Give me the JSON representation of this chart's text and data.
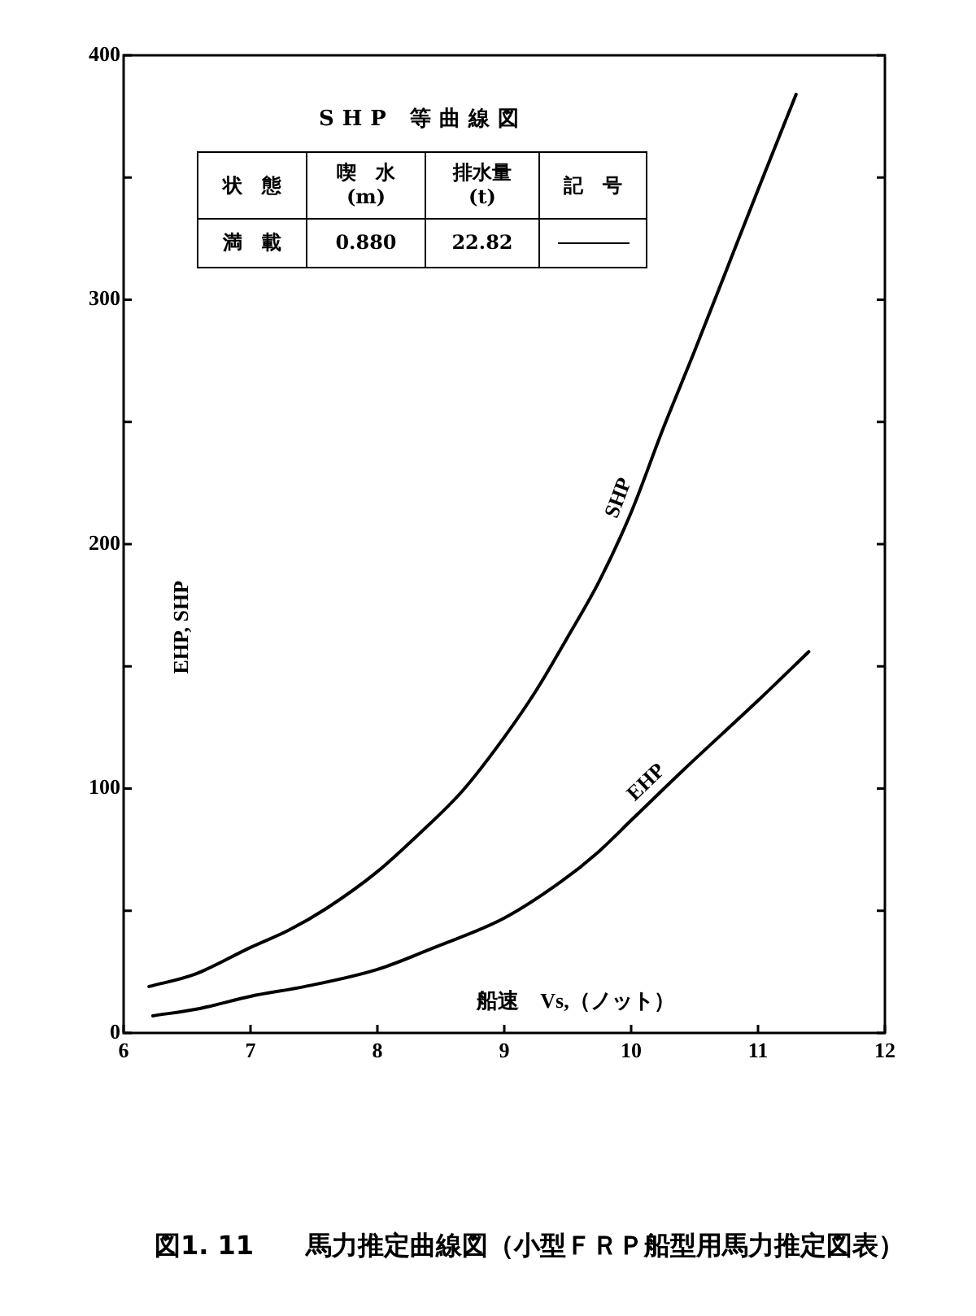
{
  "chart_data": {
    "type": "line",
    "title": "図1. 11　　馬力推定曲線図（小型ＦＲＰ船型用馬力推定図表）",
    "subtitle": "SHP 等曲線図",
    "xlabel": "船速　Vs,（ノット）",
    "ylabel": "EHP, SHP",
    "annotations": [
      "状　態",
      "喫　水\n(m)",
      "排水量\n(t)",
      "記　号",
      "満　載",
      "0.880",
      "22.82"
    ],
    "series": [
      {
        "name": "SHP",
        "color": "#000000",
        "x": [
          6.2,
          6.56,
          7.0,
          7.3,
          7.6,
          8.0,
          8.32,
          8.67,
          9.0,
          9.25,
          9.5,
          9.75,
          10.0,
          10.25,
          10.5,
          10.75,
          11.0,
          11.3
        ],
        "values": [
          19,
          24,
          35,
          42,
          51,
          66,
          81,
          99,
          121,
          140,
          162,
          185,
          213,
          247,
          279,
          312,
          345,
          384
        ]
      },
      {
        "name": "EHP",
        "color": "#000000",
        "x": [
          6.23,
          6.6,
          7.0,
          7.43,
          8.0,
          8.45,
          9.0,
          9.45,
          9.74,
          10.0,
          10.42,
          11.0,
          11.4
        ],
        "values": [
          7,
          10,
          15,
          19,
          26,
          35,
          47,
          62,
          74,
          87,
          108,
          136,
          156
        ]
      }
    ],
    "xlim": [
      6,
      12
    ],
    "xticks": [
      6,
      7,
      8,
      9,
      10,
      11,
      12
    ],
    "ylim": [
      0,
      400
    ],
    "yticks": [
      0,
      {
        "value": 50,
        "label": null
      },
      100,
      {
        "value": 150,
        "label": null
      },
      200,
      {
        "value": 250,
        "label": null
      },
      300,
      {
        "value": 350,
        "label": null
      },
      400
    ],
    "grid": false,
    "legend": false,
    "marker": "none",
    "line_style": "solid"
  }
}
